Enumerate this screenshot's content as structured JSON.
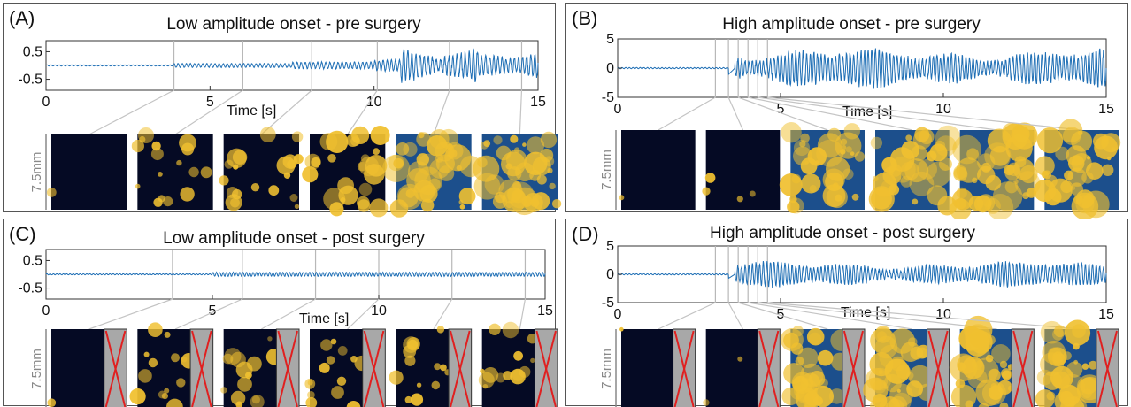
{
  "chart_data": [
    {
      "id": "A",
      "type": "line",
      "panel_label": "(A)",
      "title": "Low amplitude onset - pre surgery",
      "xlabel": "Time [s]",
      "xlim": [
        0,
        15
      ],
      "xticks": [
        "0",
        "5",
        "10",
        "15"
      ],
      "ylim": [
        -0.9,
        0.9
      ],
      "yticks": [
        "0.5",
        "-0.5"
      ],
      "ytick_values": [
        0.5,
        -0.5
      ],
      "series": [
        {
          "segments": [
            {
              "t0": 0,
              "t1": 3.9,
              "amp": 0.02
            },
            {
              "t0": 3.9,
              "t1": 7.5,
              "amp": 0.07
            },
            {
              "t0": 7.5,
              "t1": 10.0,
              "amp": 0.12
            },
            {
              "t0": 10.0,
              "t1": 10.8,
              "amp": 0.25
            },
            {
              "t0": 10.8,
              "t1": 13.2,
              "amp": 0.8
            },
            {
              "t0": 13.2,
              "t1": 15,
              "amp": 0.55
            }
          ],
          "freq": 8,
          "color": "#1f6fb5"
        }
      ],
      "snapshot_times": [
        3.9,
        6.0,
        8.1,
        10.1,
        12.3,
        14.5
      ],
      "snapshot_intensity": [
        0.02,
        0.35,
        0.45,
        0.55,
        0.85,
        0.9
      ],
      "scale_label": "7.5mm",
      "excluded": false
    },
    {
      "id": "B",
      "type": "line",
      "panel_label": "(B)",
      "title": "High amplitude onset - pre surgery",
      "xlabel": "Time [s]",
      "xlim": [
        0,
        15
      ],
      "xticks": [
        "0",
        "5",
        "10",
        "15"
      ],
      "ylim": [
        -5,
        5
      ],
      "yticks": [
        "5",
        "0",
        "-5"
      ],
      "ytick_values": [
        5,
        0,
        -5
      ],
      "series": [
        {
          "segments": [
            {
              "t0": 0,
              "t1": 3.4,
              "amp": 0.1
            },
            {
              "t0": 3.4,
              "t1": 15,
              "amp": 3.3
            }
          ],
          "step": 1.8,
          "freq": 9,
          "color": "#1f6fb5"
        }
      ],
      "snapshot_times": [
        3.0,
        3.4,
        3.7,
        4.0,
        4.3,
        4.6
      ],
      "snapshot_intensity": [
        0.02,
        0.08,
        0.8,
        0.75,
        0.9,
        0.8
      ],
      "scale_label": "7.5mm",
      "excluded": false
    },
    {
      "id": "C",
      "type": "line",
      "panel_label": "(C)",
      "title": "Low amplitude onset - post surgery",
      "xlabel": "Time [s]",
      "xlim": [
        0,
        15
      ],
      "xticks": [
        "0",
        "5",
        "10",
        "15"
      ],
      "ylim": [
        -0.9,
        0.9
      ],
      "yticks": [
        "0.5",
        "-0.5"
      ],
      "ytick_values": [
        0.5,
        -0.5
      ],
      "series": [
        {
          "segments": [
            {
              "t0": 0,
              "t1": 5.0,
              "amp": 0.02
            },
            {
              "t0": 5.0,
              "t1": 15,
              "amp": 0.07
            }
          ],
          "freq": 10,
          "color": "#1f6fb5"
        }
      ],
      "snapshot_times": [
        3.8,
        5.9,
        8.1,
        10.0,
        12.2,
        14.4
      ],
      "snapshot_intensity": [
        0.02,
        0.3,
        0.3,
        0.3,
        0.3,
        0.3
      ],
      "scale_label": "7.5mm",
      "excluded": true
    },
    {
      "id": "D",
      "type": "line",
      "panel_label": "(D)",
      "title": "High amplitude onset - post surgery",
      "xlabel": "Time [s]",
      "xlim": [
        0,
        15
      ],
      "xticks": [
        "0",
        "5",
        "10",
        "15"
      ],
      "ylim": [
        -5,
        5
      ],
      "yticks": [
        "5",
        "0",
        "-5"
      ],
      "ytick_values": [
        5,
        0,
        -5
      ],
      "series": [
        {
          "segments": [
            {
              "t0": 0,
              "t1": 3.4,
              "amp": 0.1
            },
            {
              "t0": 3.4,
              "t1": 15,
              "amp": 2.2
            }
          ],
          "step": 1.2,
          "freq": 9,
          "color": "#1f6fb5"
        }
      ],
      "snapshot_times": [
        3.0,
        3.4,
        3.7,
        4.0,
        4.3,
        4.6
      ],
      "snapshot_intensity": [
        0.02,
        0.05,
        0.7,
        0.75,
        0.85,
        0.75
      ],
      "scale_label": "7.5mm",
      "excluded": true
    }
  ],
  "colors": {
    "signal": "#1f6fb5",
    "tissue_dark": "#050a24",
    "tissue_mid": "#1c4f8c",
    "activity": "#f0c030",
    "exclusion_cross": "#e02020",
    "exclusion_fill": "#a8a8a8"
  }
}
